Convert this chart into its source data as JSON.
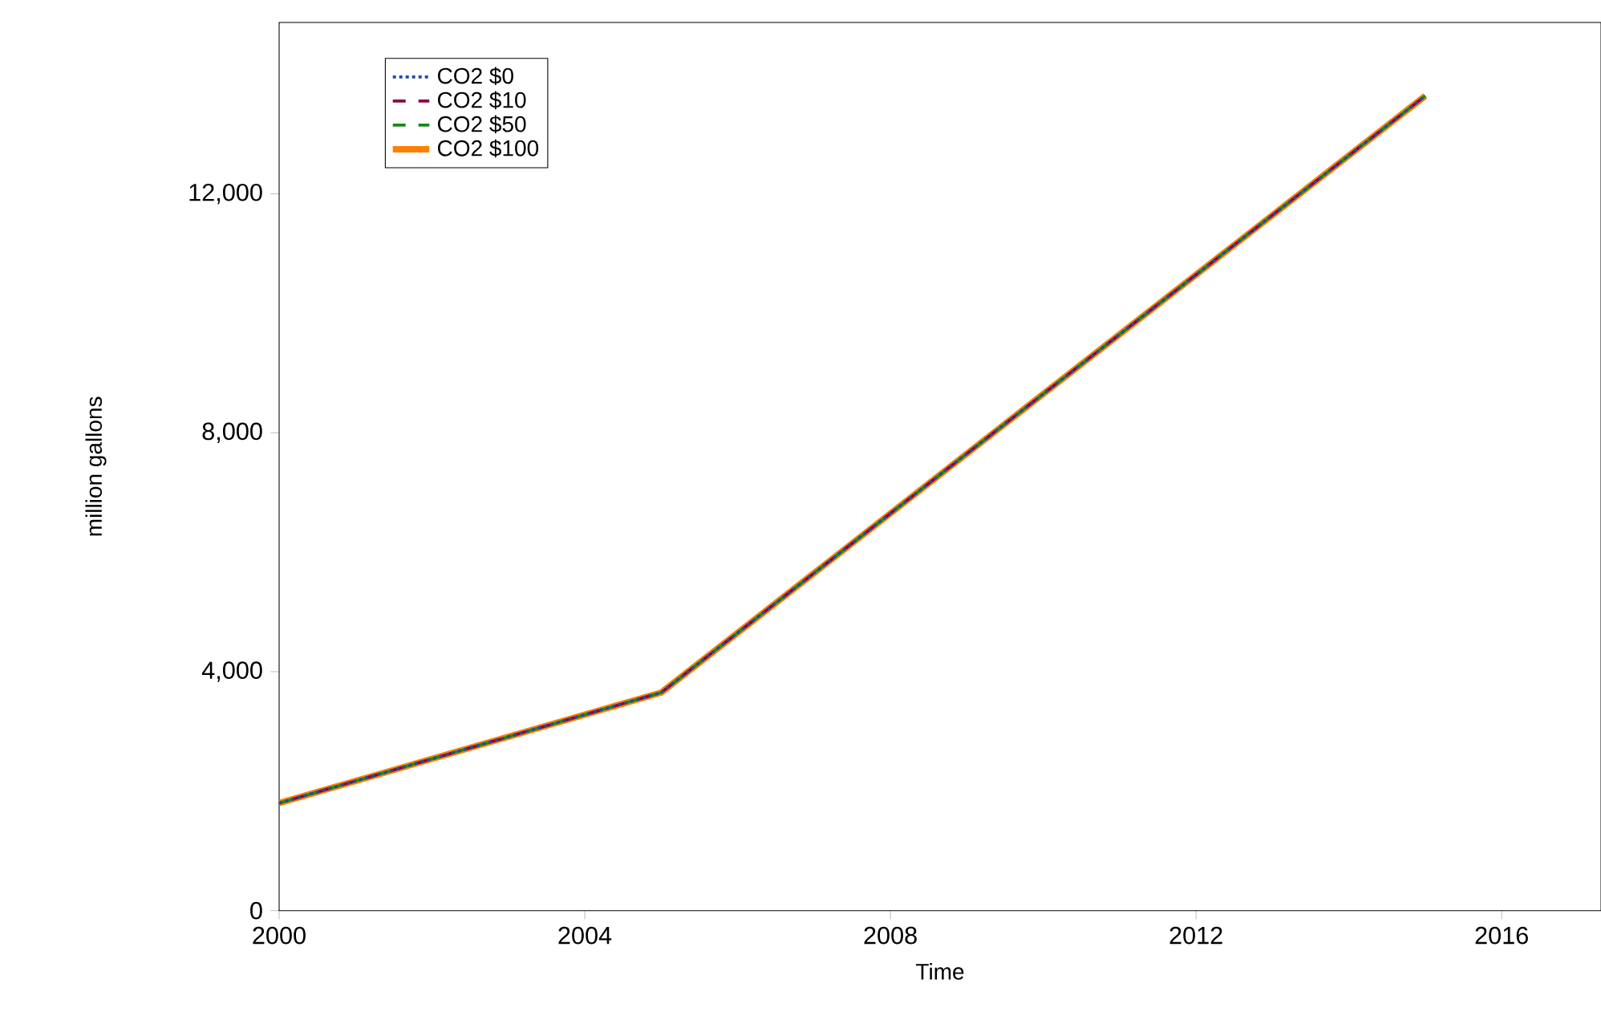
{
  "chart_data": {
    "type": "line",
    "xlabel": "Time",
    "ylabel": "million gallons",
    "xlim": [
      2000,
      2017.3
    ],
    "xticks": [
      2000,
      2004,
      2008,
      2012,
      2016
    ],
    "ylim": [
      0,
      14870
    ],
    "yticks": [
      0,
      {
        "value": 4000,
        "label": "4,000"
      },
      {
        "value": 8000,
        "label": "8,000"
      },
      {
        "value": 12000,
        "label": "12,000"
      }
    ],
    "x": [
      2000,
      2005,
      2010,
      2015
    ],
    "series": [
      {
        "name": "CO2 $0",
        "color": "#1f4e9b",
        "line_style": "dotted",
        "values": [
          1800,
          3650,
          8650,
          13640
        ]
      },
      {
        "name": "CO2 $10",
        "color": "#8b0046",
        "line_style": "dashed",
        "values": [
          1800,
          3650,
          8650,
          13640
        ]
      },
      {
        "name": "CO2 $50",
        "color": "#1a8a1a",
        "line_style": "dashed",
        "values": [
          1800,
          3650,
          8650,
          13640
        ]
      },
      {
        "name": "CO2 $100",
        "color": "#ff8000",
        "line_style": "solid",
        "values": [
          1800,
          3650,
          8650,
          13640
        ]
      }
    ],
    "legend": "top left",
    "grid": false,
    "marker": "none"
  }
}
